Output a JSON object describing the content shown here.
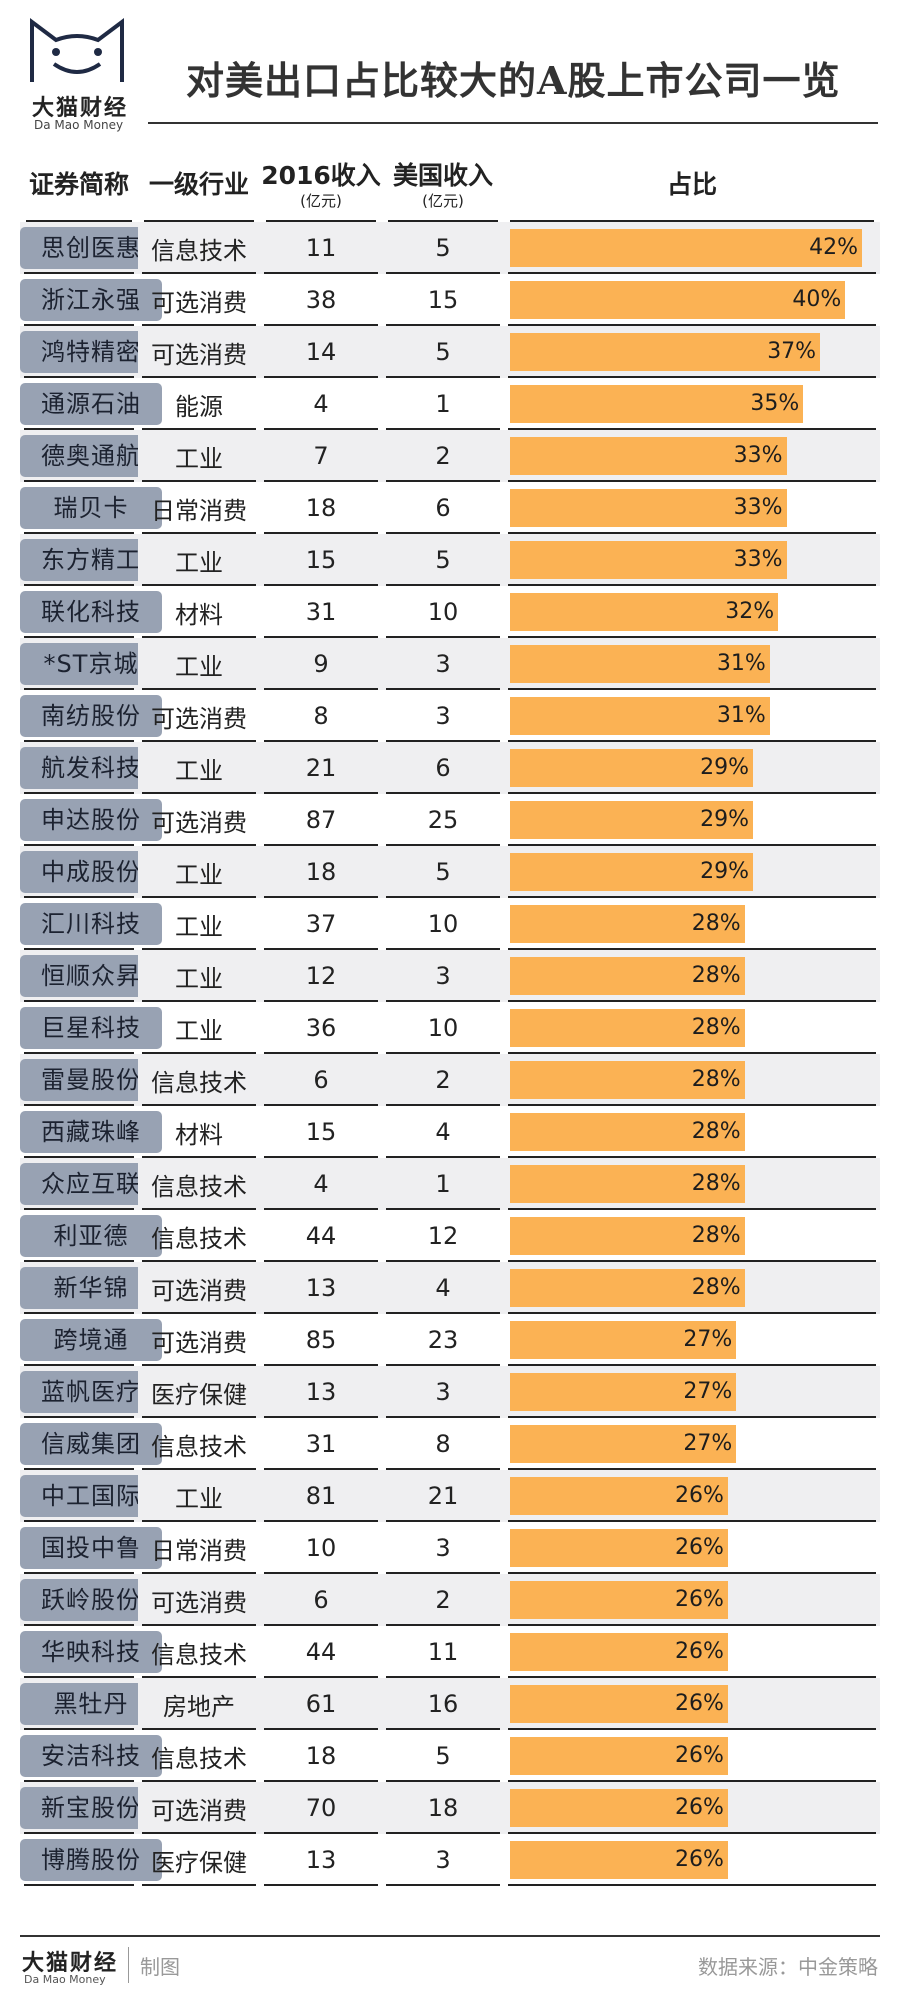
{
  "brand": {
    "cn": "大猫财经",
    "en": "Da Mao Money"
  },
  "title": "对美出口占比较大的A股上市公司一览",
  "chart_data": {
    "type": "table",
    "columns": [
      {
        "label": "证券简称",
        "sub": ""
      },
      {
        "label": "一级行业",
        "sub": ""
      },
      {
        "label": "2016收入",
        "sub": "(亿元)"
      },
      {
        "label": "美国收入",
        "sub": "(亿元)"
      },
      {
        "label": "占比",
        "sub": ""
      }
    ],
    "ratio_max": 42,
    "rows": [
      {
        "name": "思创医惠",
        "industry": "信息技术",
        "rev2016": "11",
        "us_rev": "5",
        "ratio": 42,
        "ratio_label": "42%"
      },
      {
        "name": "浙江永强",
        "industry": "可选消费",
        "rev2016": "38",
        "us_rev": "15",
        "ratio": 40,
        "ratio_label": "40%"
      },
      {
        "name": "鸿特精密",
        "industry": "可选消费",
        "rev2016": "14",
        "us_rev": "5",
        "ratio": 37,
        "ratio_label": "37%"
      },
      {
        "name": "通源石油",
        "industry": "能源",
        "rev2016": "4",
        "us_rev": "1",
        "ratio": 35,
        "ratio_label": "35%"
      },
      {
        "name": "德奥通航",
        "industry": "工业",
        "rev2016": "7",
        "us_rev": "2",
        "ratio": 33,
        "ratio_label": "33%"
      },
      {
        "name": "瑞贝卡",
        "industry": "日常消费",
        "rev2016": "18",
        "us_rev": "6",
        "ratio": 33,
        "ratio_label": "33%"
      },
      {
        "name": "东方精工",
        "industry": "工业",
        "rev2016": "15",
        "us_rev": "5",
        "ratio": 33,
        "ratio_label": "33%"
      },
      {
        "name": "联化科技",
        "industry": "材料",
        "rev2016": "31",
        "us_rev": "10",
        "ratio": 32,
        "ratio_label": "32%"
      },
      {
        "name": "*ST京城",
        "industry": "工业",
        "rev2016": "9",
        "us_rev": "3",
        "ratio": 31,
        "ratio_label": "31%"
      },
      {
        "name": "南纺股份",
        "industry": "可选消费",
        "rev2016": "8",
        "us_rev": "3",
        "ratio": 31,
        "ratio_label": "31%"
      },
      {
        "name": "航发科技",
        "industry": "工业",
        "rev2016": "21",
        "us_rev": "6",
        "ratio": 29,
        "ratio_label": "29%"
      },
      {
        "name": "申达股份",
        "industry": "可选消费",
        "rev2016": "87",
        "us_rev": "25",
        "ratio": 29,
        "ratio_label": "29%"
      },
      {
        "name": "中成股份",
        "industry": "工业",
        "rev2016": "18",
        "us_rev": "5",
        "ratio": 29,
        "ratio_label": "29%"
      },
      {
        "name": "汇川科技",
        "industry": "工业",
        "rev2016": "37",
        "us_rev": "10",
        "ratio": 28,
        "ratio_label": "28%"
      },
      {
        "name": "恒顺众昇",
        "industry": "工业",
        "rev2016": "12",
        "us_rev": "3",
        "ratio": 28,
        "ratio_label": "28%"
      },
      {
        "name": "巨星科技",
        "industry": "工业",
        "rev2016": "36",
        "us_rev": "10",
        "ratio": 28,
        "ratio_label": "28%"
      },
      {
        "name": "雷曼股份",
        "industry": "信息技术",
        "rev2016": "6",
        "us_rev": "2",
        "ratio": 28,
        "ratio_label": "28%"
      },
      {
        "name": "西藏珠峰",
        "industry": "材料",
        "rev2016": "15",
        "us_rev": "4",
        "ratio": 28,
        "ratio_label": "28%"
      },
      {
        "name": "众应互联",
        "industry": "信息技术",
        "rev2016": "4",
        "us_rev": "1",
        "ratio": 28,
        "ratio_label": "28%"
      },
      {
        "name": "利亚德",
        "industry": "信息技术",
        "rev2016": "44",
        "us_rev": "12",
        "ratio": 28,
        "ratio_label": "28%"
      },
      {
        "name": "新华锦",
        "industry": "可选消费",
        "rev2016": "13",
        "us_rev": "4",
        "ratio": 28,
        "ratio_label": "28%"
      },
      {
        "name": "跨境通",
        "industry": "可选消费",
        "rev2016": "85",
        "us_rev": "23",
        "ratio": 27,
        "ratio_label": "27%"
      },
      {
        "name": "蓝帆医疗",
        "industry": "医疗保健",
        "rev2016": "13",
        "us_rev": "3",
        "ratio": 27,
        "ratio_label": "27%"
      },
      {
        "name": "信威集团",
        "industry": "信息技术",
        "rev2016": "31",
        "us_rev": "8",
        "ratio": 27,
        "ratio_label": "27%"
      },
      {
        "name": "中工国际",
        "industry": "工业",
        "rev2016": "81",
        "us_rev": "21",
        "ratio": 26,
        "ratio_label": "26%"
      },
      {
        "name": "国投中鲁",
        "industry": "日常消费",
        "rev2016": "10",
        "us_rev": "3",
        "ratio": 26,
        "ratio_label": "26%"
      },
      {
        "name": "跃岭股份",
        "industry": "可选消费",
        "rev2016": "6",
        "us_rev": "2",
        "ratio": 26,
        "ratio_label": "26%"
      },
      {
        "name": "华映科技",
        "industry": "信息技术",
        "rev2016": "44",
        "us_rev": "11",
        "ratio": 26,
        "ratio_label": "26%"
      },
      {
        "name": "黑牡丹",
        "industry": "房地产",
        "rev2016": "61",
        "us_rev": "16",
        "ratio": 26,
        "ratio_label": "26%"
      },
      {
        "name": "安洁科技",
        "industry": "信息技术",
        "rev2016": "18",
        "us_rev": "5",
        "ratio": 26,
        "ratio_label": "26%"
      },
      {
        "name": "新宝股份",
        "industry": "可选消费",
        "rev2016": "70",
        "us_rev": "18",
        "ratio": 26,
        "ratio_label": "26%"
      },
      {
        "name": "博腾股份",
        "industry": "医疗保健",
        "rev2016": "13",
        "us_rev": "3",
        "ratio": 26,
        "ratio_label": "26%"
      }
    ]
  },
  "footer": {
    "brand_cn": "大猫财经",
    "brand_en": "Da Mao Money",
    "made": "制图",
    "source": "数据来源：中金策略"
  },
  "colors": {
    "bar": "#fbb254",
    "pill": "#98a2b3",
    "alt_row": "#efeff1"
  }
}
